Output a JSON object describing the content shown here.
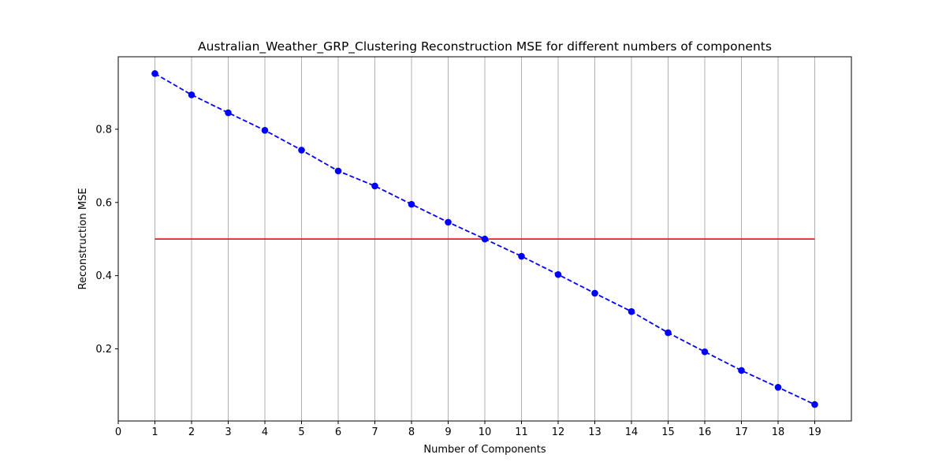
{
  "chart_data": {
    "type": "line",
    "title": "Australian_Weather_GRP_Clustering Reconstruction MSE for different numbers of components",
    "xlabel": "Number of Components",
    "ylabel": "Reconstruction MSE",
    "xlim": [
      0,
      20
    ],
    "ylim": [
      0.003,
      0.998
    ],
    "xticks": [
      0,
      1,
      2,
      3,
      4,
      5,
      6,
      7,
      8,
      9,
      10,
      11,
      12,
      13,
      14,
      15,
      16,
      17,
      18,
      19
    ],
    "yticks": [
      0.2,
      0.4,
      0.6,
      0.8
    ],
    "ytick_labels": [
      "0.2",
      "0.4",
      "0.6",
      "0.8"
    ],
    "grid": "vertical",
    "series": [
      {
        "style": "dashed-with-circle-markers",
        "color": "#0000ff",
        "x": [
          1,
          2,
          3,
          4,
          5,
          6,
          7,
          8,
          9,
          10,
          11,
          12,
          13,
          14,
          15,
          16,
          17,
          18,
          19
        ],
        "values": [
          0.952,
          0.894,
          0.845,
          0.797,
          0.743,
          0.686,
          0.645,
          0.595,
          0.546,
          0.5,
          0.453,
          0.403,
          0.352,
          0.302,
          0.244,
          0.192,
          0.141,
          0.095,
          0.048
        ]
      }
    ],
    "reference_lines": [
      {
        "orientation": "horizontal",
        "y": 0.5,
        "x_from": 1,
        "x_to": 19,
        "color": "#ff0000"
      }
    ]
  }
}
